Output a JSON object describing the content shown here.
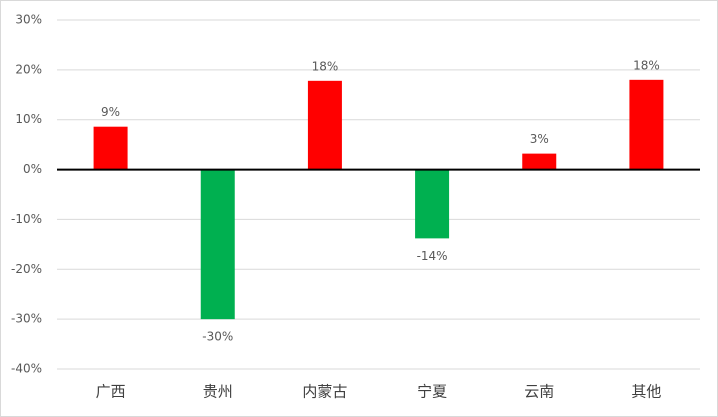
{
  "chart_data": {
    "type": "bar",
    "categories": [
      "广西",
      "贵州",
      "内蒙古",
      "宁夏",
      "云南",
      "其他"
    ],
    "values": [
      8.6,
      -30,
      17.8,
      -13.8,
      3.2,
      18
    ],
    "value_labels": [
      "9%",
      "-30%",
      "18%",
      "-14%",
      "3%",
      "18%"
    ],
    "colors": [
      "#ff0000",
      "#00b050",
      "#ff0000",
      "#00b050",
      "#ff0000",
      "#ff0000"
    ],
    "ylim": [
      -40,
      30
    ],
    "yticks": [
      {
        "value": -40,
        "label": "-40%"
      },
      {
        "value": -30,
        "label": "-30%"
      },
      {
        "value": -20,
        "label": "-20%"
      },
      {
        "value": -10,
        "label": "-10%"
      },
      {
        "value": 0,
        "label": "0%"
      },
      {
        "value": 10,
        "label": "10%"
      },
      {
        "value": 20,
        "label": "20%"
      },
      {
        "value": 30,
        "label": "30%"
      }
    ],
    "grid": true
  }
}
